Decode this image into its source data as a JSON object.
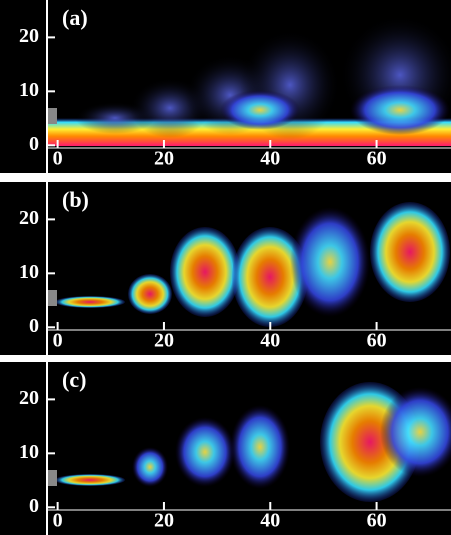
{
  "chart_data": [
    {
      "type": "image",
      "title": "(a)",
      "xlim": [
        -2,
        74
      ],
      "ylim": [
        -0.5,
        26
      ],
      "xticks": [
        0,
        20,
        40,
        60
      ],
      "yticks": [
        0,
        10,
        20
      ]
    },
    {
      "type": "image",
      "title": "(b)",
      "xlim": [
        -2,
        74
      ],
      "ylim": [
        -0.5,
        26
      ],
      "xticks": [
        0,
        20,
        40,
        60
      ],
      "yticks": [
        0,
        10,
        20
      ]
    },
    {
      "type": "image",
      "title": "(c)",
      "xlim": [
        -2,
        74
      ],
      "ylim": [
        -0.5,
        26
      ],
      "xticks": [
        0,
        20,
        40,
        60
      ],
      "yticks": [
        0,
        10,
        20
      ]
    }
  ]
}
